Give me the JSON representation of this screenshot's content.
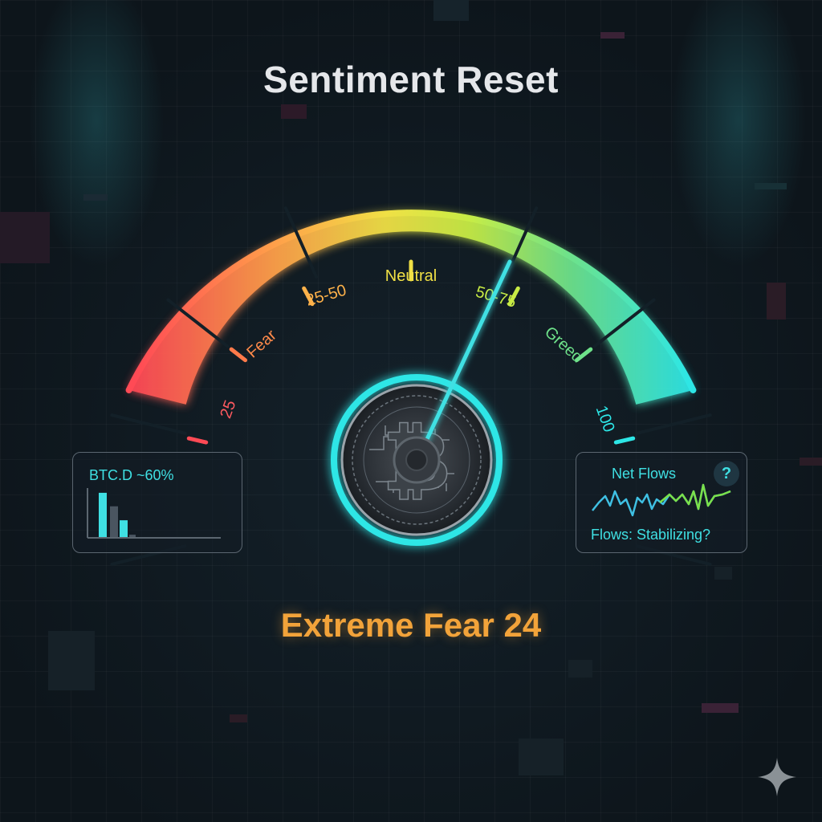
{
  "title": "Sentiment Reset",
  "gauge": {
    "labels": [
      "25",
      "Fear",
      "25-50",
      "Neutral",
      "50-75",
      "Greed",
      "100"
    ],
    "needle_value": 0.61
  },
  "btc_dominance": {
    "label": "BTC.D ~60%",
    "bar_levels": [
      0.95,
      0.66,
      0.36,
      0.05
    ]
  },
  "net_flows": {
    "title": "Net Flows",
    "help_symbol": "?",
    "status": "Flows: Stabilizing?"
  },
  "reading": "Extreme Fear 24",
  "colors": {
    "background": "#101820",
    "accent": "#3fe0e3",
    "fear": "#ff4a55",
    "greed": "#2de6e6",
    "reading": "#f2a33a"
  }
}
